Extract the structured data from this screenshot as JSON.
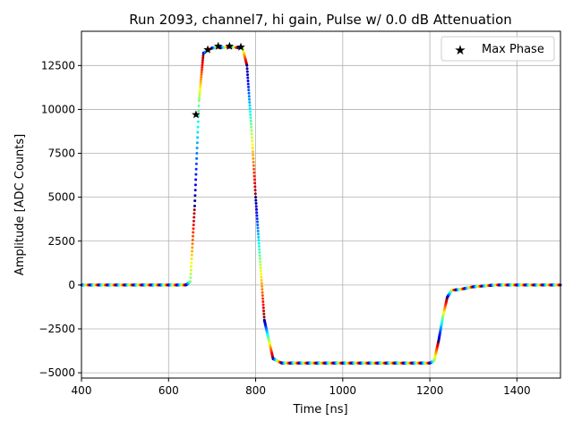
{
  "chart_data": {
    "type": "scatter",
    "title": "Run 2093, channel7, hi gain, Pulse w/ 0.0 dB Attenuation",
    "xlabel": "Time [ns]",
    "ylabel": "Amplitude [ADC Counts]",
    "xlim": [
      400,
      1500
    ],
    "ylim": [
      -5300,
      14450
    ],
    "x_ticks": [
      400,
      600,
      800,
      1000,
      1200,
      1400
    ],
    "x_tick_labels": [
      "400",
      "600",
      "800",
      "1000",
      "1200",
      "1400"
    ],
    "y_ticks": [
      -5000,
      -2500,
      0,
      2500,
      5000,
      7500,
      10000,
      12500
    ],
    "y_tick_labels": [
      "−5000",
      "−2500",
      "0",
      "2500",
      "5000",
      "7500",
      "10000",
      "12500"
    ],
    "grid": true,
    "legend": {
      "position": "top-right",
      "entries": [
        "Max Phase"
      ]
    },
    "colormap": "jet",
    "pulse_shape": {
      "description_points_time_ns": [
        400,
        640,
        650,
        660,
        670,
        680,
        700,
        740,
        770,
        780,
        790,
        800,
        810,
        820,
        840,
        860,
        1200,
        1210,
        1220,
        1230,
        1240,
        1250,
        1270,
        1300,
        1350,
        1500
      ],
      "description_points_amplitude": [
        0,
        0,
        200,
        4500,
        10500,
        13200,
        13500,
        13550,
        13500,
        12500,
        9000,
        5000,
        1500,
        -2000,
        -4200,
        -4450,
        -4450,
        -4300,
        -3200,
        -1800,
        -700,
        -300,
        -250,
        -100,
        0,
        0
      ]
    },
    "series": [
      {
        "name": "Max Phase",
        "marker": "star",
        "color": "#000000",
        "x": [
          663,
          690,
          714,
          740,
          766
        ],
        "y": [
          9700,
          13400,
          13600,
          13600,
          13550
        ]
      }
    ]
  }
}
